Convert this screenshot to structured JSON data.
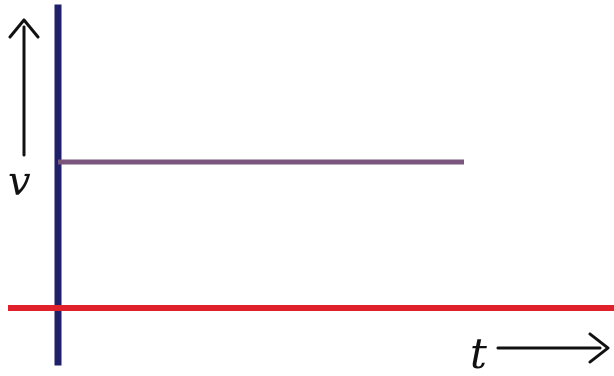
{
  "chart_data": {
    "type": "line",
    "title": "",
    "xlabel": "t",
    "ylabel": "v",
    "series": [
      {
        "x": [
          0,
          1
        ],
        "y": [
          1,
          1
        ]
      }
    ],
    "xlim": [
      0,
      1.45
    ],
    "ylim": [
      -0.82,
      1.0
    ]
  },
  "colors": {
    "vertical_axis": "#1f1f6b",
    "horizontal_axis": "#e0202a",
    "series_line": "#7a567d",
    "label": "#111111"
  }
}
